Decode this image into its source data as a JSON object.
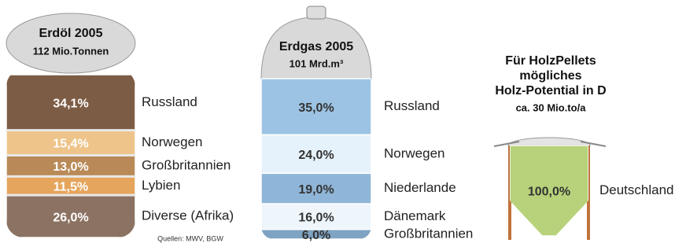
{
  "chart_data": [
    {
      "type": "barrel",
      "title": "Erdöl 2005",
      "subtitle": "112 Mio.Tonnen",
      "categories": [
        "Russland",
        "Norwegen",
        "Großbritannien",
        "Lybien",
        "Diverse (Afrika)"
      ],
      "values": [
        34.1,
        15.4,
        13.0,
        11.5,
        26.0
      ],
      "value_labels": [
        "34,1%",
        "15,4%",
        "13,0%",
        "11,5%",
        "26,0%"
      ],
      "colors": [
        "#7d5c45",
        "#eec48a",
        "#b98a57",
        "#e6a55c",
        "#8b7262"
      ],
      "source": "Quellen: MWV, BGW"
    },
    {
      "type": "tank",
      "title": "Erdgas 2005",
      "subtitle": "101 Mrd.m³",
      "categories": [
        "Russland",
        "Norwegen",
        "Niederlande",
        "Dänemark",
        "Großbritannien"
      ],
      "values": [
        35.0,
        24.0,
        19.0,
        16.0,
        6.0
      ],
      "value_labels": [
        "35,0%",
        "24,0%",
        "19,0%",
        "16,0%",
        "6,0%"
      ],
      "colors": [
        "#9cc3e3",
        "#e6f2fb",
        "#8fb6d8",
        "#eef6fc",
        "#7fa3c2"
      ]
    },
    {
      "type": "silo",
      "title": [
        "Für HolzPellets",
        "mögliches",
        "Holz-Potential in D"
      ],
      "subtitle": "ca. 30 Mio.to/a",
      "categories": [
        "Deutschland"
      ],
      "values": [
        100.0
      ],
      "value_labels": [
        "100,0%"
      ],
      "colors": [
        "#b7d27a"
      ]
    }
  ]
}
